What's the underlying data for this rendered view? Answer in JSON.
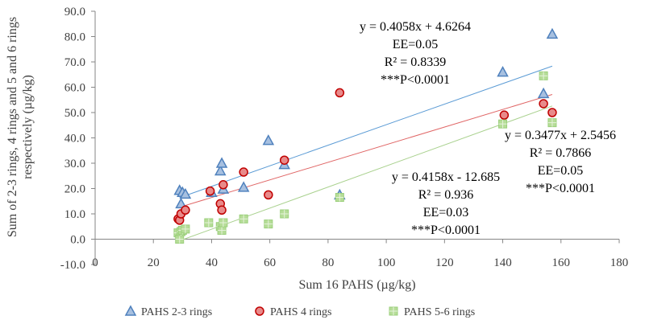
{
  "chart_data": {
    "type": "scatter",
    "xlabel": "Sum 16 PAHS (µg/kg)",
    "ylabel": "Sum of 2-3 rings, 4 rings and 5 and 6 rings respectively (µg/kg)",
    "ylabel_lines": [
      "Sum of 2-3 rings, 4 rings and 5 and 6 rings",
      "respectively (µg/kg)"
    ],
    "xlim": [
      0,
      180
    ],
    "ylim": [
      -10,
      90
    ],
    "xticks": [
      "0",
      "20",
      "40",
      "60",
      "80",
      "100",
      "120",
      "140",
      "160",
      "180"
    ],
    "yticks": [
      "-10.0",
      "0.0",
      "10.0",
      "20.0",
      "30.0",
      "40.0",
      "50.0",
      "60.0",
      "70.0",
      "80.0",
      "90.0"
    ],
    "grid": false,
    "legend": "bottom",
    "series": [
      {
        "name": "PAHS 2-3 rings",
        "marker": "triangle",
        "color": "#4f81bd",
        "fill": "#a7c0e0",
        "line_color": "#5b9bd5",
        "x": [
          29,
          29.5,
          30,
          31,
          40,
          43,
          43.5,
          44,
          51,
          59.5,
          65,
          84,
          140,
          154,
          157
        ],
        "y": [
          19.3,
          14,
          18.5,
          17.8,
          18.5,
          27,
          30,
          19.8,
          20.5,
          39,
          29.5,
          17.5,
          66,
          57.5,
          81
        ],
        "fit": {
          "slope": 0.4058,
          "intercept": 4.6264,
          "x_range": [
            29,
            157
          ]
        },
        "annotation": [
          "y = 0.4058x + 4.6264",
          "EE=0.05",
          "R² = 0.8339",
          "***P<0.0001"
        ]
      },
      {
        "name": "PAHS 4 rings",
        "marker": "circle",
        "color": "#c00000",
        "fill": "#e88a8a",
        "line_color": "#e06666",
        "x": [
          28.5,
          29,
          29.5,
          31,
          39.5,
          43,
          43.5,
          44,
          51,
          59.5,
          65,
          84,
          140.5,
          154,
          157
        ],
        "y": [
          8,
          7.5,
          10,
          11.5,
          19,
          14,
          11.5,
          21.5,
          26.5,
          17.5,
          31.2,
          57.8,
          49,
          53.5,
          50
        ],
        "fit": {
          "slope": 0.3477,
          "intercept": 2.5456,
          "x_range": [
            29,
            157
          ]
        },
        "annotation": [
          "y = 0.3477x + 2.5456",
          "R² = 0.7866",
          "EE=0.05",
          "***P<0.0001"
        ]
      },
      {
        "name": "PAHS 5-6 rings",
        "marker": "square",
        "color": "#9bcf7b",
        "fill": "#b6dd98",
        "line_color": "#a9d18e",
        "x": [
          28.5,
          29,
          29.5,
          30,
          31,
          39,
          43,
          43.5,
          44,
          51,
          59.5,
          65,
          84,
          140,
          154,
          157
        ],
        "y": [
          2.5,
          0,
          3,
          3.5,
          4,
          6.5,
          5,
          3.5,
          6.5,
          8,
          6,
          10,
          16.5,
          45.5,
          64.5,
          46
        ],
        "fit": {
          "slope": 0.4158,
          "intercept": -12.685,
          "x_range": [
            29,
            157
          ]
        },
        "annotation": [
          "y = 0.4158x - 12.685",
          "R² = 0.936",
          "EE=0.03",
          "***P<0.0001"
        ]
      }
    ]
  }
}
